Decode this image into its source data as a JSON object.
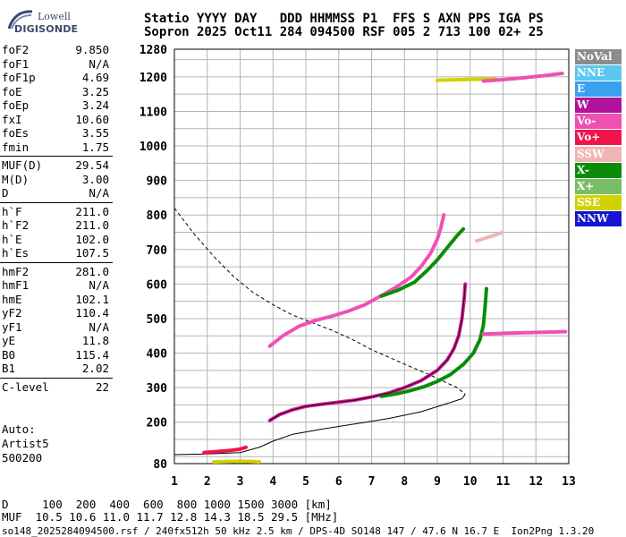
{
  "logo": {
    "line1": "Lowell",
    "line2": "DIGISONDE"
  },
  "header": {
    "labels": "Statio YYYY DAY   DDD HHMMSS P1  FFS S AXN PPS IGA PS",
    "values": "Sopron 2025 Oct11 284 094500 RSF 005 2 713 100 02+ 25"
  },
  "params": {
    "group1": [
      {
        "k": "foF2",
        "v": "9.850"
      },
      {
        "k": "foF1",
        "v": "N/A"
      },
      {
        "k": "foF1p",
        "v": "4.69"
      },
      {
        "k": "foE",
        "v": "3.25"
      },
      {
        "k": "foEp",
        "v": "3.24"
      },
      {
        "k": "fxI",
        "v": "10.60"
      },
      {
        "k": "foEs",
        "v": "3.55"
      },
      {
        "k": "fmin",
        "v": "1.75"
      }
    ],
    "group2": [
      {
        "k": "MUF(D)",
        "v": "29.54"
      },
      {
        "k": "M(D)",
        "v": "3.00"
      },
      {
        "k": "D",
        "v": "N/A"
      }
    ],
    "group3": [
      {
        "k": "h`F",
        "v": "211.0"
      },
      {
        "k": "h`F2",
        "v": "211.0"
      },
      {
        "k": "h`E",
        "v": "102.0"
      },
      {
        "k": "h`Es",
        "v": "107.5"
      }
    ],
    "group4": [
      {
        "k": "hmF2",
        "v": "281.0"
      },
      {
        "k": "hmF1",
        "v": "N/A"
      },
      {
        "k": "hmE",
        "v": "102.1"
      },
      {
        "k": "yF2",
        "v": "110.4"
      },
      {
        "k": "yF1",
        "v": "N/A"
      },
      {
        "k": "yE",
        "v": "11.8"
      },
      {
        "k": "B0",
        "v": "115.4"
      },
      {
        "k": "B1",
        "v": "2.02"
      }
    ],
    "group5": [
      {
        "k": "C-level",
        "v": "22"
      }
    ]
  },
  "auto": {
    "line1": "Auto:",
    "line2": "Artist5",
    "line3": "500200"
  },
  "legend": [
    {
      "label": "NoVal",
      "color": "#8c8c8c"
    },
    {
      "label": "NNE",
      "color": "#5bc8f0"
    },
    {
      "label": "E",
      "color": "#3aa0f0"
    },
    {
      "label": "W",
      "color": "#b0139a"
    },
    {
      "label": "Vo-",
      "color": "#f050b4"
    },
    {
      "label": "Vo+",
      "color": "#f0144b"
    },
    {
      "label": "SSW",
      "color": "#f0b4b4"
    },
    {
      "label": "X-",
      "color": "#0a8c0a"
    },
    {
      "label": "X+",
      "color": "#78be64"
    },
    {
      "label": "SSE",
      "color": "#d2d200"
    },
    {
      "label": "NNW",
      "color": "#1414d2"
    }
  ],
  "bottom": {
    "d_row": "D     100  200  400  600  800 1000 1500 3000 [km]",
    "muf_row": "MUF  10.5 10.6 11.0 11.7 12.8 14.3 18.5 29.5 [MHz]"
  },
  "footer": "so148_2025284094500.rsf / 240fx512h 50 kHz 2.5 km / DPS-4D SO148 147 / 47.6 N 16.7 E  Ion2Png 1.3.20",
  "chart_data": {
    "type": "scatter",
    "title": "",
    "xlabel": "",
    "ylabel": "",
    "xlim": [
      1,
      13
    ],
    "ylim": [
      80,
      1280
    ],
    "x_ticks": [
      1,
      2,
      3,
      4,
      5,
      6,
      7,
      8,
      9,
      10,
      11,
      12,
      13
    ],
    "y_ticks": [
      80,
      200,
      300,
      400,
      500,
      600,
      700,
      800,
      900,
      1000,
      1100,
      1200,
      1280
    ],
    "grid": true,
    "series": [
      {
        "name": "Vo-",
        "color": "#d0209a",
        "type": "trace",
        "points": [
          [
            3.9,
            205
          ],
          [
            4.2,
            222
          ],
          [
            4.6,
            236
          ],
          [
            5.0,
            246
          ],
          [
            5.5,
            252
          ],
          [
            6.0,
            258
          ],
          [
            6.5,
            264
          ],
          [
            7.0,
            273
          ],
          [
            7.5,
            284
          ],
          [
            8.0,
            300
          ],
          [
            8.5,
            320
          ],
          [
            9.0,
            350
          ],
          [
            9.3,
            380
          ],
          [
            9.5,
            412
          ],
          [
            9.65,
            450
          ],
          [
            9.75,
            500
          ],
          [
            9.82,
            560
          ],
          [
            9.85,
            600
          ]
        ]
      },
      {
        "name": "X-",
        "color": "#0a8c0a",
        "type": "trace",
        "points": [
          [
            7.3,
            275
          ],
          [
            7.8,
            283
          ],
          [
            8.2,
            292
          ],
          [
            8.6,
            303
          ],
          [
            9.0,
            318
          ],
          [
            9.4,
            338
          ],
          [
            9.8,
            368
          ],
          [
            10.1,
            400
          ],
          [
            10.3,
            440
          ],
          [
            10.4,
            480
          ],
          [
            10.45,
            530
          ],
          [
            10.5,
            590
          ]
        ]
      },
      {
        "name": "Vo-",
        "color": "#f050b4",
        "type": "trace",
        "points": [
          [
            3.9,
            420
          ],
          [
            4.3,
            450
          ],
          [
            4.8,
            478
          ],
          [
            5.3,
            495
          ],
          [
            5.8,
            507
          ],
          [
            6.3,
            522
          ],
          [
            6.8,
            540
          ],
          [
            7.1,
            556
          ],
          [
            7.4,
            572
          ],
          [
            7.8,
            594
          ],
          [
            8.2,
            620
          ],
          [
            8.5,
            650
          ],
          [
            8.8,
            690
          ],
          [
            9.0,
            730
          ],
          [
            9.1,
            760
          ],
          [
            9.2,
            800
          ]
        ]
      },
      {
        "name": "X-",
        "color": "#0a8c0a",
        "type": "trace",
        "points": [
          [
            7.3,
            565
          ],
          [
            7.8,
            582
          ],
          [
            8.3,
            605
          ],
          [
            8.7,
            640
          ],
          [
            9.0,
            670
          ],
          [
            9.3,
            705
          ],
          [
            9.6,
            740
          ],
          [
            9.8,
            760
          ]
        ]
      },
      {
        "name": "Vo+",
        "color": "#f0144b",
        "type": "trace",
        "points": [
          [
            1.9,
            112
          ],
          [
            2.3,
            115
          ],
          [
            2.7,
            118
          ],
          [
            3.0,
            122
          ],
          [
            3.2,
            128
          ]
        ]
      },
      {
        "name": "SSE",
        "color": "#d2d200",
        "type": "trace",
        "points": [
          [
            9.0,
            1190
          ],
          [
            9.6,
            1192
          ],
          [
            10.2,
            1193
          ],
          [
            10.8,
            1195
          ]
        ]
      },
      {
        "name": "Vo-",
        "color": "#f050b4",
        "type": "trace",
        "points": [
          [
            10.4,
            1188
          ],
          [
            11.0,
            1192
          ],
          [
            11.6,
            1197
          ],
          [
            12.2,
            1203
          ],
          [
            12.8,
            1210
          ]
        ]
      },
      {
        "name": "SSE",
        "color": "#d2d200",
        "type": "trace",
        "points": [
          [
            2.2,
            85
          ],
          [
            2.6,
            86
          ],
          [
            3.0,
            87
          ],
          [
            3.4,
            86
          ],
          [
            3.6,
            85
          ]
        ]
      },
      {
        "name": "SSW",
        "color": "#f0b4b4",
        "type": "trace",
        "points": [
          [
            10.2,
            725
          ],
          [
            10.7,
            740
          ],
          [
            11.0,
            750
          ]
        ]
      },
      {
        "name": "Vo-",
        "color": "#f050b4",
        "type": "trace",
        "points": [
          [
            10.4,
            455
          ],
          [
            11.2,
            458
          ],
          [
            12.0,
            460
          ],
          [
            12.9,
            462
          ]
        ]
      }
    ],
    "profile_curve": {
      "color": "#000000",
      "points": [
        [
          1.0,
          106
        ],
        [
          2.0,
          108
        ],
        [
          3.0,
          112
        ],
        [
          3.6,
          128
        ],
        [
          4.0,
          145
        ],
        [
          4.6,
          165
        ],
        [
          5.5,
          180
        ],
        [
          6.5,
          195
        ],
        [
          7.5,
          210
        ],
        [
          8.5,
          230
        ],
        [
          9.3,
          254
        ],
        [
          9.75,
          268
        ],
        [
          9.85,
          281
        ]
      ]
    },
    "dashed_curve": {
      "color": "#000000",
      "points": [
        [
          1.0,
          820
        ],
        [
          1.6,
          745
        ],
        [
          2.2,
          680
        ],
        [
          2.8,
          622
        ],
        [
          3.4,
          575
        ],
        [
          4.0,
          540
        ],
        [
          4.6,
          510
        ],
        [
          5.2,
          488
        ],
        [
          5.8,
          466
        ],
        [
          6.4,
          440
        ],
        [
          7.0,
          410
        ],
        [
          7.6,
          385
        ],
        [
          8.2,
          360
        ],
        [
          8.7,
          340
        ],
        [
          9.2,
          318
        ],
        [
          9.6,
          300
        ],
        [
          9.85,
          281
        ]
      ]
    }
  }
}
